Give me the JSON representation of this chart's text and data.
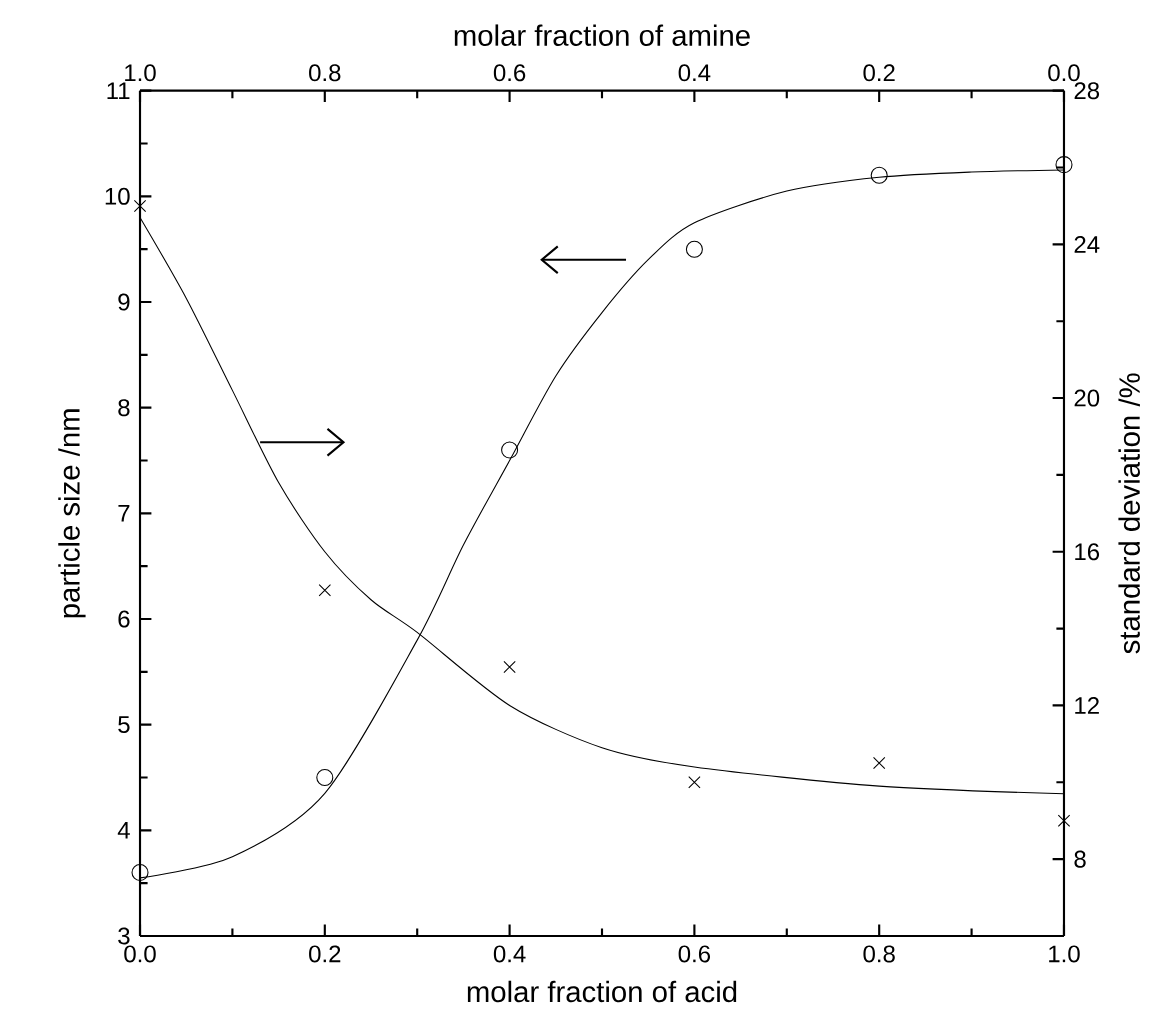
{
  "chart_data": {
    "type": "scatter",
    "xlabel": "molar fraction of acid",
    "ylabel": "particle size /nm",
    "y2label": "standard deviation /%",
    "x2label": "molar fraction of amine",
    "xlim": [
      0,
      1
    ],
    "xticks": [
      {
        "value": 0,
        "label": "0.0"
      },
      {
        "value": 0.2,
        "label": "0.2"
      },
      {
        "value": 0.4,
        "label": "0.4"
      },
      {
        "value": 0.6,
        "label": "0.6"
      },
      {
        "value": 0.8,
        "label": "0.8"
      },
      {
        "value": 1,
        "label": "1.0"
      }
    ],
    "x2lim": [
      1,
      0
    ],
    "x2ticks": [
      {
        "value": 1,
        "label": "1.0"
      },
      {
        "value": 0.8,
        "label": "0.8"
      },
      {
        "value": 0.6,
        "label": "0.6"
      },
      {
        "value": 0.4,
        "label": "0.4"
      },
      {
        "value": 0.2,
        "label": "0.2"
      },
      {
        "value": 0,
        "label": "0.0"
      }
    ],
    "ylim": [
      3,
      11
    ],
    "yticks": [
      3,
      4,
      5,
      6,
      7,
      8,
      9,
      10,
      11
    ],
    "y2lim": [
      6,
      28
    ],
    "y2ticks": [
      8,
      12,
      16,
      20,
      24,
      28
    ],
    "series": [
      {
        "marker": "circle",
        "color": "#000000",
        "x": [
          0,
          0.2,
          0.4,
          0.6,
          0.8,
          1.0
        ],
        "values": [
          3.6,
          4.5,
          7.6,
          9.5,
          10.2,
          10.3
        ]
      },
      {
        "marker": "cross",
        "color": "#000000",
        "axis": "y2",
        "x": [
          0,
          0.2,
          0.4,
          0.6,
          0.8,
          1.0
        ],
        "values": [
          25,
          15,
          13,
          10,
          10.5,
          9
        ]
      },
      {
        "type": "line",
        "marker": "none",
        "line_style": "solid",
        "color": "#000000",
        "x": [
          0,
          0.1,
          0.2,
          0.3,
          0.35,
          0.4,
          0.45,
          0.5,
          0.55,
          0.6,
          0.7,
          0.8,
          0.9,
          1.0
        ],
        "values": [
          3.55,
          3.75,
          4.35,
          5.8,
          6.7,
          7.5,
          8.3,
          8.9,
          9.4,
          9.75,
          10.05,
          10.18,
          10.23,
          10.25
        ]
      },
      {
        "type": "line",
        "marker": "none",
        "line_style": "solid",
        "color": "#000000",
        "axis": "y2",
        "x": [
          0,
          0.05,
          0.1,
          0.15,
          0.2,
          0.25,
          0.3,
          0.4,
          0.5,
          0.6,
          0.8,
          1.0
        ],
        "values": [
          24.7,
          22.6,
          20.2,
          17.8,
          16.0,
          14.75,
          13.9,
          12.0,
          10.9,
          10.4,
          9.9,
          9.7
        ]
      }
    ]
  }
}
